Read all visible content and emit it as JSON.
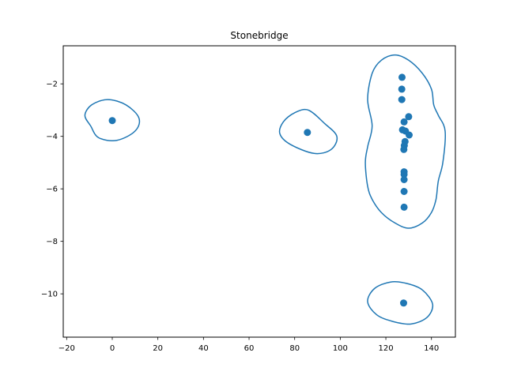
{
  "chart_data": {
    "type": "scatter",
    "title": "Stonebridge",
    "xlabel": "",
    "ylabel": "",
    "xlim": [
      -21.5,
      150.5
    ],
    "ylim": [
      -11.65,
      -0.55
    ],
    "x_ticks": [
      -20,
      0,
      20,
      40,
      60,
      80,
      100,
      120,
      140
    ],
    "y_ticks": [
      -10,
      -8,
      -6,
      -4,
      -2
    ],
    "grid": false,
    "color": "#1f77b4",
    "points": [
      {
        "x": 0.0,
        "y": -3.4
      },
      {
        "x": 85.6,
        "y": -3.85
      },
      {
        "x": 127.1,
        "y": -1.75
      },
      {
        "x": 127.0,
        "y": -2.2
      },
      {
        "x": 127.0,
        "y": -2.6
      },
      {
        "x": 130.0,
        "y": -3.25
      },
      {
        "x": 128.0,
        "y": -3.45
      },
      {
        "x": 127.3,
        "y": -3.75
      },
      {
        "x": 128.6,
        "y": -3.8
      },
      {
        "x": 130.2,
        "y": -3.95
      },
      {
        "x": 128.4,
        "y": -4.2
      },
      {
        "x": 128.1,
        "y": -4.35
      },
      {
        "x": 127.9,
        "y": -4.5
      },
      {
        "x": 128.0,
        "y": -5.35
      },
      {
        "x": 128.0,
        "y": -5.45
      },
      {
        "x": 128.0,
        "y": -5.65
      },
      {
        "x": 128.0,
        "y": -6.1
      },
      {
        "x": 128.0,
        "y": -6.7
      },
      {
        "x": 127.8,
        "y": -10.35
      }
    ],
    "cluster_outlines": [
      [
        [
          -9.5,
          -3.6
        ],
        [
          -12,
          -3.2
        ],
        [
          -9,
          -2.8
        ],
        [
          -2,
          -2.6
        ],
        [
          6,
          -2.8
        ],
        [
          11.7,
          -3.3
        ],
        [
          10,
          -3.8
        ],
        [
          2,
          -4.15
        ],
        [
          -6,
          -4.05
        ]
      ],
      [
        [
          73.5,
          -3.9
        ],
        [
          75,
          -3.45
        ],
        [
          80,
          -3.1
        ],
        [
          86,
          -3.0
        ],
        [
          93,
          -3.5
        ],
        [
          98.5,
          -4.0
        ],
        [
          96,
          -4.5
        ],
        [
          88.5,
          -4.65
        ],
        [
          78,
          -4.3
        ]
      ],
      [
        [
          114,
          -3.6
        ],
        [
          112,
          -2.6
        ],
        [
          114,
          -1.6
        ],
        [
          118,
          -1.1
        ],
        [
          124,
          -0.9
        ],
        [
          130,
          -1.1
        ],
        [
          136,
          -1.6
        ],
        [
          140,
          -2.2
        ],
        [
          141,
          -2.8
        ],
        [
          143,
          -3.2
        ],
        [
          146,
          -3.8
        ],
        [
          145,
          -5.0
        ],
        [
          143,
          -5.7
        ],
        [
          142,
          -6.4
        ],
        [
          140,
          -6.9
        ],
        [
          136,
          -7.3
        ],
        [
          130,
          -7.5
        ],
        [
          124,
          -7.3
        ],
        [
          118,
          -6.9
        ],
        [
          114,
          -6.4
        ],
        [
          112,
          -5.9
        ],
        [
          111,
          -5.0
        ],
        [
          112,
          -4.4
        ]
      ],
      [
        [
          112,
          -10.3
        ],
        [
          115,
          -9.8
        ],
        [
          122,
          -9.55
        ],
        [
          129,
          -9.6
        ],
        [
          136,
          -9.85
        ],
        [
          140.5,
          -10.4
        ],
        [
          138,
          -10.9
        ],
        [
          131,
          -11.15
        ],
        [
          123,
          -11.05
        ],
        [
          116,
          -10.8
        ]
      ]
    ]
  }
}
